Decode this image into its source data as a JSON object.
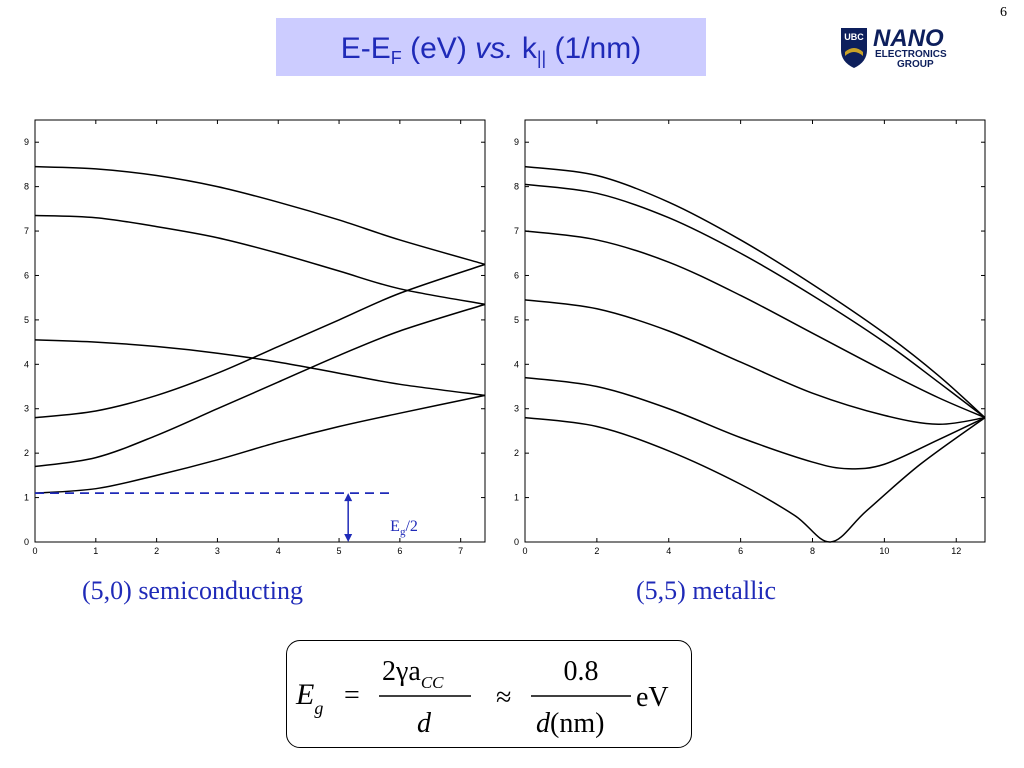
{
  "page_number": "6",
  "title": {
    "prefix": "E-E",
    "prefix_sub": "F",
    "unit1": " (eV) ",
    "vs": "vs.",
    "k": " k",
    "k_sub": "||",
    "unit2": " (1/nm)"
  },
  "logo": {
    "ubc": "UBC",
    "nano": "NANO",
    "line1": "ELECTRONICS",
    "line2": "GROUP",
    "colors": {
      "navy": "#0d1f5c",
      "gold": "#c9a227"
    }
  },
  "annotation_label": {
    "E": "E",
    "sub": "g",
    "rest": "/2"
  },
  "captions": {
    "left": "(5,0) semiconducting",
    "right": "(5,5) metallic"
  },
  "formula": {
    "lhs_E": "E",
    "lhs_sub": "g",
    "eq": "=",
    "num1": "2γa",
    "num1_sub": "CC",
    "den1": "d",
    "approx": "≈",
    "num2": "0.8",
    "den2_d": "d",
    "den2_unit": "(nm)",
    "unit": "eV"
  },
  "colors": {
    "title_bg": "#ccccff",
    "title_text": "#1f2ab8",
    "caption_text": "#1f2ab8",
    "annotation": "#1f2ab8"
  },
  "chart_data": [
    {
      "type": "line",
      "xlim": [
        0,
        7.4
      ],
      "ylim": [
        0,
        9.5
      ],
      "x_ticks": [
        0,
        1,
        2,
        3,
        4,
        5,
        6,
        7
      ],
      "y_ticks": [
        0,
        1,
        2,
        3,
        4,
        5,
        6,
        7,
        8,
        9
      ],
      "series": [
        {
          "points": [
            [
              0,
              1.1
            ],
            [
              1,
              1.2
            ],
            [
              2,
              1.5
            ],
            [
              3,
              1.85
            ],
            [
              4,
              2.25
            ],
            [
              5,
              2.6
            ],
            [
              6,
              2.9
            ],
            [
              7.4,
              3.3
            ]
          ]
        },
        {
          "points": [
            [
              0,
              1.7
            ],
            [
              1,
              1.9
            ],
            [
              2,
              2.4
            ],
            [
              3,
              3.0
            ],
            [
              4,
              3.6
            ],
            [
              5,
              4.2
            ],
            [
              6,
              4.75
            ],
            [
              7.4,
              5.35
            ]
          ]
        },
        {
          "points": [
            [
              0,
              2.8
            ],
            [
              1,
              2.95
            ],
            [
              2,
              3.3
            ],
            [
              3,
              3.8
            ],
            [
              4,
              4.4
            ],
            [
              5,
              5.0
            ],
            [
              6,
              5.6
            ],
            [
              7.4,
              6.25
            ]
          ]
        },
        {
          "points": [
            [
              0,
              4.55
            ],
            [
              1,
              4.5
            ],
            [
              2,
              4.4
            ],
            [
              3,
              4.25
            ],
            [
              4,
              4.05
            ],
            [
              5,
              3.8
            ],
            [
              6,
              3.55
            ],
            [
              7.4,
              3.3
            ]
          ]
        },
        {
          "points": [
            [
              0,
              7.35
            ],
            [
              1,
              7.3
            ],
            [
              2,
              7.1
            ],
            [
              3,
              6.85
            ],
            [
              4,
              6.5
            ],
            [
              5,
              6.1
            ],
            [
              6,
              5.7
            ],
            [
              7.4,
              5.35
            ]
          ]
        },
        {
          "points": [
            [
              0,
              8.45
            ],
            [
              1,
              8.4
            ],
            [
              2,
              8.25
            ],
            [
              3,
              8.0
            ],
            [
              4,
              7.65
            ],
            [
              5,
              7.25
            ],
            [
              6,
              6.8
            ],
            [
              7.4,
              6.25
            ]
          ]
        }
      ],
      "annotations": {
        "gap_half": 1.1,
        "gap_line_x_end": 5.9,
        "arrow_x": 5.15
      }
    },
    {
      "type": "line",
      "xlim": [
        0,
        12.8
      ],
      "ylim": [
        0,
        9.5
      ],
      "x_ticks": [
        0,
        2,
        4,
        6,
        8,
        10,
        12
      ],
      "y_ticks": [
        0,
        1,
        2,
        3,
        4,
        5,
        6,
        7,
        8,
        9
      ],
      "series": [
        {
          "points": [
            [
              0,
              2.8
            ],
            [
              2,
              2.6
            ],
            [
              4,
              2.05
            ],
            [
              6,
              1.3
            ],
            [
              7.5,
              0.6
            ],
            [
              8.5,
              0
            ],
            [
              9.5,
              0.7
            ],
            [
              11,
              1.75
            ],
            [
              12.8,
              2.8
            ]
          ]
        },
        {
          "points": [
            [
              0,
              3.7
            ],
            [
              2,
              3.5
            ],
            [
              4,
              3.0
            ],
            [
              6,
              2.35
            ],
            [
              8,
              1.8
            ],
            [
              9,
              1.65
            ],
            [
              10,
              1.75
            ],
            [
              11.5,
              2.3
            ],
            [
              12.8,
              2.8
            ]
          ]
        },
        {
          "points": [
            [
              0,
              5.45
            ],
            [
              2,
              5.25
            ],
            [
              4,
              4.75
            ],
            [
              6,
              4.05
            ],
            [
              8,
              3.35
            ],
            [
              10,
              2.85
            ],
            [
              11.5,
              2.65
            ],
            [
              12.8,
              2.8
            ]
          ]
        },
        {
          "points": [
            [
              0,
              7.0
            ],
            [
              2,
              6.8
            ],
            [
              4,
              6.3
            ],
            [
              6,
              5.55
            ],
            [
              8,
              4.7
            ],
            [
              10,
              3.85
            ],
            [
              11.5,
              3.25
            ],
            [
              12.8,
              2.8
            ]
          ]
        },
        {
          "points": [
            [
              0,
              8.05
            ],
            [
              2,
              7.85
            ],
            [
              4,
              7.3
            ],
            [
              6,
              6.5
            ],
            [
              8,
              5.55
            ],
            [
              10,
              4.5
            ],
            [
              11.5,
              3.6
            ],
            [
              12.8,
              2.8
            ]
          ]
        },
        {
          "points": [
            [
              0,
              8.45
            ],
            [
              2,
              8.25
            ],
            [
              4,
              7.65
            ],
            [
              6,
              6.8
            ],
            [
              8,
              5.8
            ],
            [
              10,
              4.7
            ],
            [
              11.5,
              3.75
            ],
            [
              12.8,
              2.8
            ]
          ]
        }
      ]
    }
  ]
}
